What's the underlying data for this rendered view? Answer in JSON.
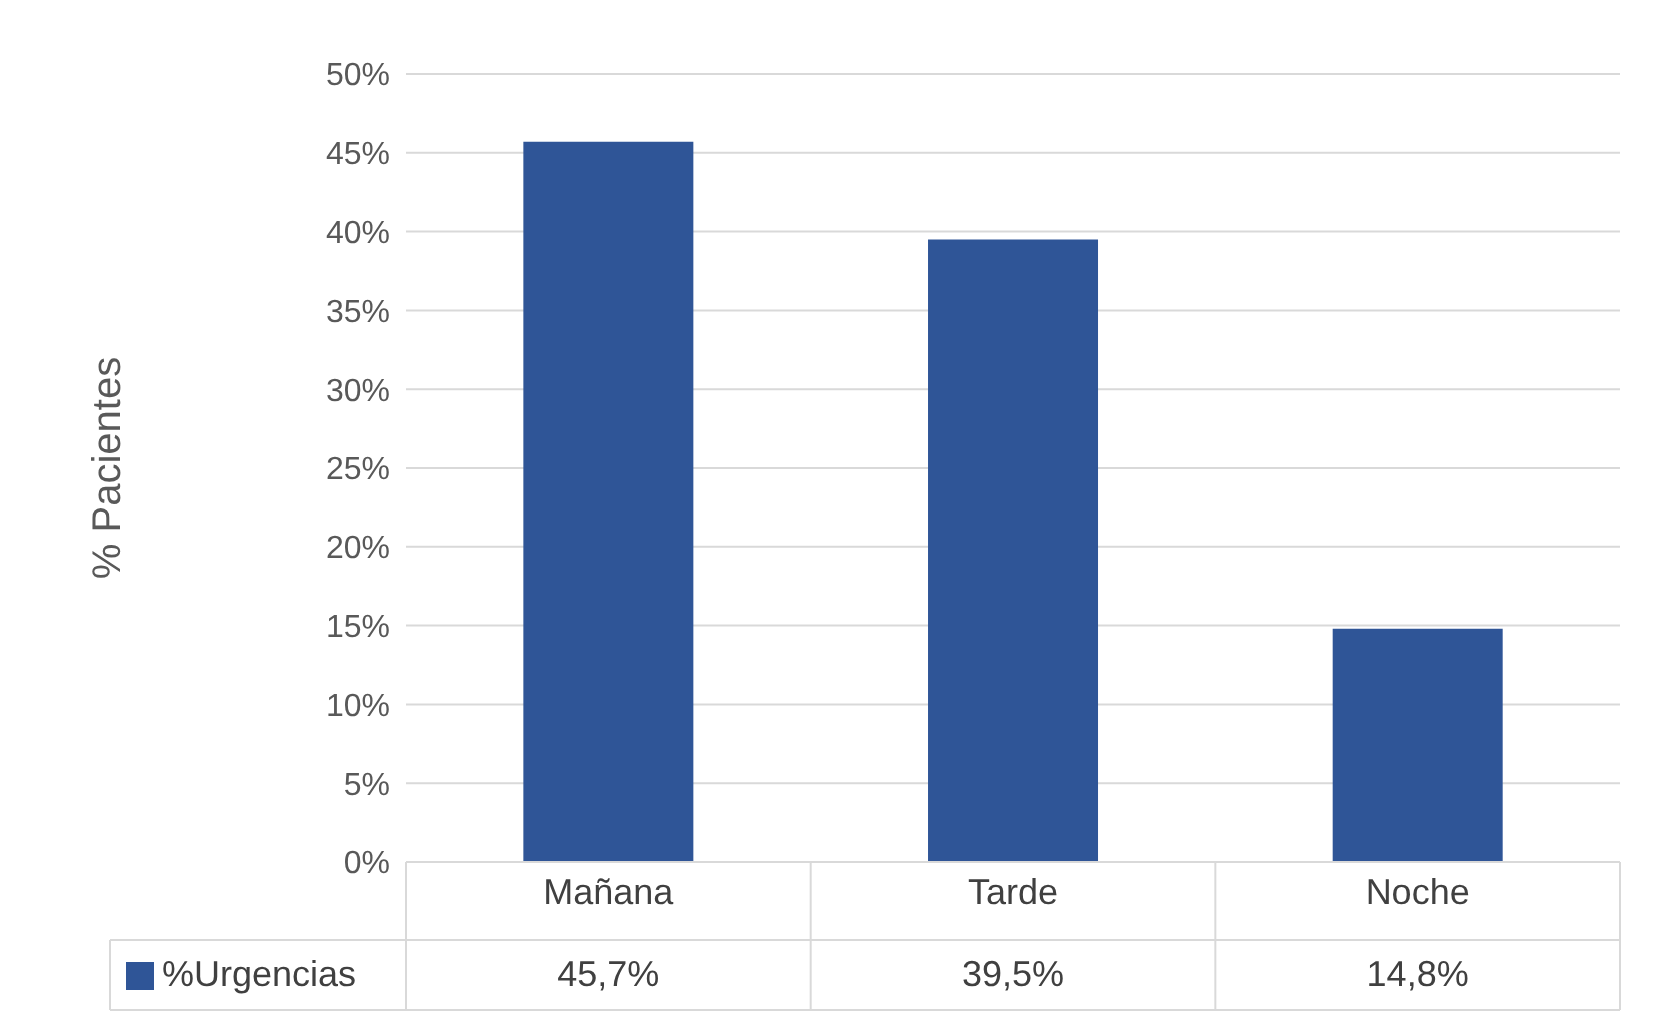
{
  "chart_data": {
    "type": "bar",
    "ylabel": "% Pacientes",
    "categories": [
      "Mañana",
      "Tarde",
      "Noche"
    ],
    "series": [
      {
        "name": "%Urgencias",
        "color": "#2f5597",
        "values": [
          45.7,
          39.5,
          14.8
        ],
        "value_labels": [
          "45,7%",
          "39,5%",
          "14,8%"
        ]
      }
    ],
    "ylim": [
      0,
      50
    ],
    "yticks": [
      {
        "value": 0,
        "label": "0%"
      },
      {
        "value": 5,
        "label": "5%"
      },
      {
        "value": 10,
        "label": "10%"
      },
      {
        "value": 15,
        "label": "15%"
      },
      {
        "value": 20,
        "label": "20%"
      },
      {
        "value": 25,
        "label": "25%"
      },
      {
        "value": 30,
        "label": "30%"
      },
      {
        "value": 35,
        "label": "35%"
      },
      {
        "value": 40,
        "label": "40%"
      },
      {
        "value": 45,
        "label": "45%"
      },
      {
        "value": 50,
        "label": "50%"
      }
    ],
    "grid": "y",
    "legend": "bottom"
  }
}
